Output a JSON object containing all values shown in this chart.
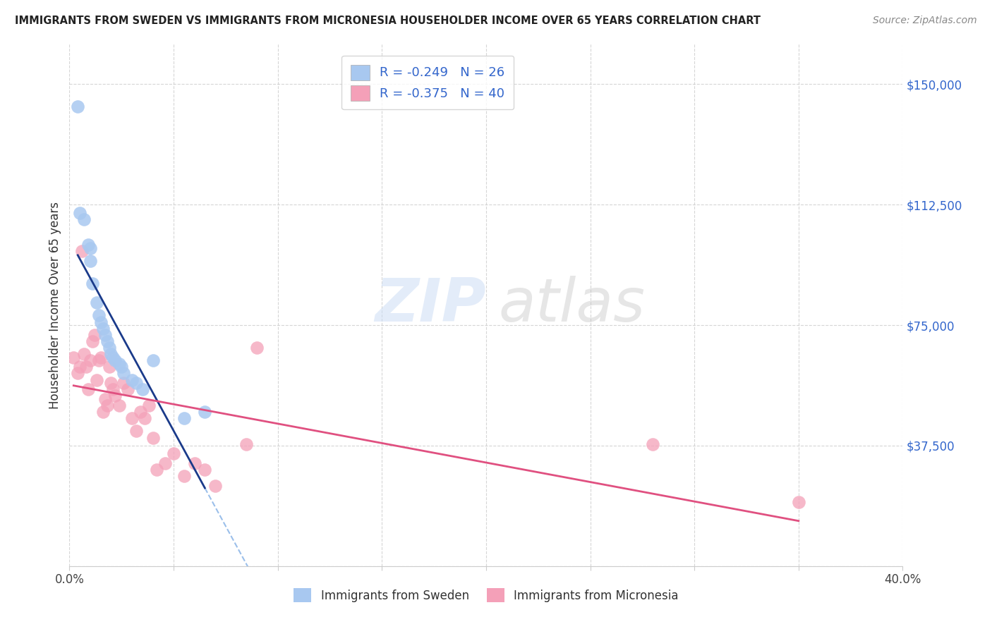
{
  "title": "IMMIGRANTS FROM SWEDEN VS IMMIGRANTS FROM MICRONESIA HOUSEHOLDER INCOME OVER 65 YEARS CORRELATION CHART",
  "source": "Source: ZipAtlas.com",
  "ylabel": "Householder Income Over 65 years",
  "ylim": [
    0,
    162500
  ],
  "xlim": [
    0.0,
    0.4
  ],
  "yticks": [
    0,
    37500,
    75000,
    112500,
    150000
  ],
  "ytick_labels": [
    "",
    "$37,500",
    "$75,000",
    "$112,500",
    "$150,000"
  ],
  "xtick_positions": [
    0.0,
    0.05,
    0.1,
    0.15,
    0.2,
    0.25,
    0.3,
    0.35,
    0.4
  ],
  "xtick_labels": [
    "0.0%",
    "",
    "",
    "",
    "",
    "",
    "",
    "",
    "40.0%"
  ],
  "sweden_R": -0.249,
  "sweden_N": 26,
  "micronesia_R": -0.375,
  "micronesia_N": 40,
  "sweden_color": "#a8c8f0",
  "micronesia_color": "#f4a0b8",
  "sweden_line_color": "#1a3a8a",
  "micronesia_line_color": "#e05080",
  "ext_line_color": "#90b8e8",
  "background_color": "#ffffff",
  "grid_color": "#cccccc",
  "title_color": "#222222",
  "source_color": "#888888",
  "ytick_color": "#3366cc",
  "sweden_x": [
    0.004,
    0.005,
    0.007,
    0.009,
    0.01,
    0.01,
    0.011,
    0.013,
    0.014,
    0.015,
    0.016,
    0.017,
    0.018,
    0.019,
    0.02,
    0.021,
    0.022,
    0.024,
    0.025,
    0.026,
    0.03,
    0.032,
    0.035,
    0.04,
    0.055,
    0.065
  ],
  "sweden_y": [
    143000,
    110000,
    108000,
    100000,
    99000,
    95000,
    88000,
    82000,
    78000,
    76000,
    74000,
    72000,
    70000,
    68000,
    66000,
    65000,
    64000,
    63000,
    62000,
    60000,
    58000,
    57000,
    55000,
    64000,
    46000,
    48000
  ],
  "micronesia_x": [
    0.002,
    0.004,
    0.005,
    0.006,
    0.007,
    0.008,
    0.009,
    0.01,
    0.011,
    0.012,
    0.013,
    0.014,
    0.015,
    0.016,
    0.017,
    0.018,
    0.019,
    0.02,
    0.021,
    0.022,
    0.024,
    0.026,
    0.028,
    0.03,
    0.032,
    0.034,
    0.036,
    0.038,
    0.04,
    0.042,
    0.046,
    0.05,
    0.055,
    0.06,
    0.065,
    0.07,
    0.085,
    0.09,
    0.28,
    0.35
  ],
  "micronesia_y": [
    65000,
    60000,
    62000,
    98000,
    66000,
    62000,
    55000,
    64000,
    70000,
    72000,
    58000,
    64000,
    65000,
    48000,
    52000,
    50000,
    62000,
    57000,
    55000,
    53000,
    50000,
    57000,
    55000,
    46000,
    42000,
    48000,
    46000,
    50000,
    40000,
    30000,
    32000,
    35000,
    28000,
    32000,
    30000,
    25000,
    38000,
    68000,
    38000,
    20000
  ]
}
